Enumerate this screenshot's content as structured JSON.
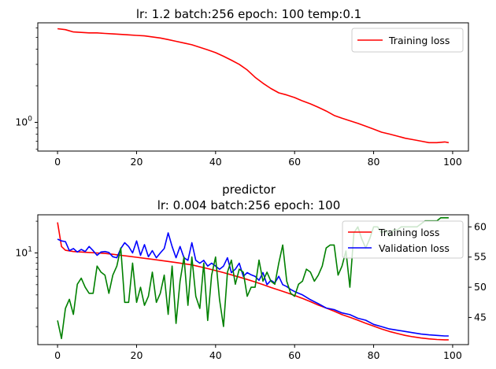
{
  "chart_data": [
    {
      "type": "line",
      "title": "lr: 1.2 batch:256 epoch: 100 temp:0.1",
      "xlabel": "",
      "ylabel": "",
      "xlim": [
        -5,
        104
      ],
      "ylim": [
        0.58,
        6.6
      ],
      "yscale": "log",
      "x_ticks": [
        0,
        20,
        40,
        60,
        80,
        100
      ],
      "y_ticks": [
        {
          "value": 1,
          "label": "10",
          "exp": "0"
        }
      ],
      "grid": false,
      "legend_position": "upper right",
      "series": [
        {
          "name": "Training loss",
          "color": "#ff0000",
          "x": [
            0,
            2,
            4,
            6,
            8,
            10,
            12,
            14,
            16,
            18,
            20,
            22,
            24,
            26,
            28,
            30,
            32,
            34,
            36,
            38,
            40,
            42,
            44,
            46,
            48,
            50,
            52,
            54,
            56,
            58,
            60,
            62,
            64,
            66,
            68,
            70,
            72,
            74,
            76,
            78,
            80,
            82,
            84,
            86,
            88,
            90,
            92,
            94,
            96,
            98,
            99
          ],
          "values": [
            5.9,
            5.8,
            5.55,
            5.5,
            5.45,
            5.45,
            5.4,
            5.35,
            5.3,
            5.25,
            5.2,
            5.15,
            5.05,
            4.95,
            4.8,
            4.65,
            4.5,
            4.35,
            4.15,
            3.95,
            3.75,
            3.5,
            3.25,
            3.0,
            2.7,
            2.35,
            2.1,
            1.9,
            1.75,
            1.68,
            1.6,
            1.5,
            1.42,
            1.33,
            1.24,
            1.14,
            1.08,
            1.03,
            0.98,
            0.93,
            0.88,
            0.83,
            0.8,
            0.77,
            0.74,
            0.72,
            0.7,
            0.68,
            0.68,
            0.69,
            0.68
          ]
        }
      ]
    },
    {
      "type": "line",
      "title_lines": [
        "predictor",
        "lr: 0.004 batch:256 epoch: 100"
      ],
      "xlabel": "",
      "ylabel": "",
      "xlim": [
        -5,
        104
      ],
      "ylim": [
        1.35,
        23
      ],
      "yscale": "log",
      "ylim_right": [
        40.5,
        62
      ],
      "x_ticks": [
        0,
        20,
        40,
        60,
        80,
        100
      ],
      "y_ticks": [
        {
          "value": 10,
          "label": "10",
          "exp": "1"
        }
      ],
      "y_ticks_right": [
        45,
        50,
        55,
        60
      ],
      "grid": false,
      "legend_position": "upper right",
      "series": [
        {
          "name": "Training loss",
          "axis": "left",
          "color": "#ff0000",
          "x": [
            0,
            1,
            2,
            4,
            6,
            8,
            10,
            12,
            14,
            16,
            18,
            20,
            22,
            24,
            26,
            28,
            30,
            32,
            34,
            36,
            38,
            40,
            42,
            44,
            46,
            48,
            50,
            52,
            54,
            56,
            58,
            60,
            62,
            64,
            66,
            68,
            70,
            72,
            74,
            76,
            78,
            80,
            82,
            84,
            86,
            88,
            90,
            92,
            94,
            96,
            98,
            99
          ],
          "values": [
            19.5,
            11.5,
            10.6,
            10.3,
            10.2,
            10.1,
            10.0,
            9.9,
            9.7,
            9.5,
            9.3,
            9.1,
            8.9,
            8.7,
            8.5,
            8.3,
            8.1,
            7.9,
            7.7,
            7.4,
            7.1,
            6.8,
            6.5,
            6.2,
            5.9,
            5.6,
            5.3,
            5.0,
            4.7,
            4.45,
            4.2,
            3.95,
            3.7,
            3.45,
            3.2,
            3.0,
            2.8,
            2.6,
            2.45,
            2.3,
            2.15,
            2.02,
            1.9,
            1.8,
            1.72,
            1.65,
            1.6,
            1.56,
            1.53,
            1.51,
            1.5,
            1.5
          ]
        },
        {
          "name": "Validation loss",
          "axis": "left",
          "color": "#0000ff",
          "x": [
            0,
            1,
            2,
            3,
            4,
            5,
            6,
            7,
            8,
            9,
            10,
            11,
            12,
            13,
            14,
            15,
            16,
            17,
            18,
            19,
            20,
            21,
            22,
            23,
            24,
            25,
            26,
            27,
            28,
            29,
            30,
            31,
            32,
            33,
            34,
            35,
            36,
            37,
            38,
            39,
            40,
            41,
            42,
            43,
            44,
            45,
            46,
            47,
            48,
            49,
            50,
            51,
            52,
            53,
            54,
            55,
            56,
            57,
            58,
            59,
            60,
            62,
            64,
            66,
            68,
            70,
            72,
            74,
            76,
            78,
            80,
            82,
            84,
            86,
            88,
            90,
            92,
            94,
            96,
            98,
            99
          ],
          "values": [
            13.5,
            13.0,
            12.8,
            10.5,
            11.0,
            10.2,
            10.8,
            10.3,
            11.5,
            10.5,
            9.5,
            10.2,
            10.3,
            10.1,
            9.2,
            9.0,
            11.0,
            12.5,
            11.5,
            10.0,
            13.0,
            9.5,
            12.0,
            9.2,
            10.5,
            9.0,
            10.0,
            11.0,
            15.5,
            11.5,
            9.0,
            11.5,
            9.0,
            8.5,
            12.5,
            8.5,
            8.0,
            8.5,
            7.5,
            8.0,
            7.5,
            7.0,
            7.5,
            9.0,
            6.5,
            7.0,
            8.0,
            6.0,
            6.5,
            6.2,
            6.0,
            5.5,
            6.5,
            5.0,
            5.5,
            5.2,
            6.0,
            5.0,
            4.8,
            4.5,
            4.3,
            4.0,
            3.6,
            3.3,
            3.0,
            2.9,
            2.7,
            2.6,
            2.4,
            2.3,
            2.1,
            2.0,
            1.9,
            1.85,
            1.8,
            1.75,
            1.7,
            1.67,
            1.65,
            1.63,
            1.63
          ]
        },
        {
          "name": "",
          "axis": "right",
          "color": "#008000",
          "x": [
            0,
            1,
            2,
            3,
            4,
            5,
            6,
            7,
            8,
            9,
            10,
            11,
            12,
            13,
            14,
            15,
            16,
            17,
            18,
            19,
            20,
            21,
            22,
            23,
            24,
            25,
            26,
            27,
            28,
            29,
            30,
            31,
            32,
            33,
            34,
            35,
            36,
            37,
            38,
            39,
            40,
            41,
            42,
            43,
            44,
            45,
            46,
            47,
            48,
            49,
            50,
            51,
            52,
            53,
            54,
            55,
            56,
            57,
            58,
            59,
            60,
            61,
            62,
            63,
            64,
            65,
            66,
            67,
            68,
            69,
            70,
            71,
            72,
            73,
            74,
            75,
            76,
            77,
            78,
            79,
            80,
            81,
            82,
            83,
            84,
            85,
            86,
            87,
            88,
            89,
            90,
            91,
            92,
            93,
            94,
            95,
            96,
            97,
            98,
            99
          ],
          "values": [
            44.5,
            41.5,
            46.5,
            48.0,
            45.5,
            50.5,
            51.5,
            50.0,
            49.0,
            49.0,
            53.5,
            52.5,
            52.0,
            49.0,
            52.0,
            53.5,
            56.5,
            47.5,
            47.5,
            54.0,
            47.5,
            50.0,
            47.0,
            48.5,
            52.5,
            47.5,
            49.0,
            52.0,
            45.5,
            53.5,
            44.0,
            51.0,
            55.0,
            47.0,
            55.0,
            48.5,
            46.5,
            54.0,
            44.5,
            52.0,
            55.0,
            48.0,
            43.5,
            52.5,
            54.5,
            50.5,
            53.0,
            52.5,
            48.5,
            50.0,
            50.0,
            54.5,
            51.0,
            52.5,
            51.0,
            50.5,
            54.0,
            57.0,
            51.0,
            49.0,
            48.5,
            50.5,
            51.0,
            53.0,
            52.5,
            51.0,
            52.0,
            53.5,
            56.5,
            57.0,
            57.0,
            52.0,
            53.5,
            56.0,
            50.0,
            59.0,
            60.0,
            58.0,
            56.5,
            58.0,
            60.0,
            60.0,
            59.0,
            59.5,
            58.5,
            59.5,
            59.5,
            60.0,
            60.0,
            60.0,
            60.0,
            60.0,
            60.5,
            61.0,
            61.0,
            61.0,
            61.0,
            61.5,
            61.5,
            61.5
          ]
        }
      ]
    }
  ]
}
